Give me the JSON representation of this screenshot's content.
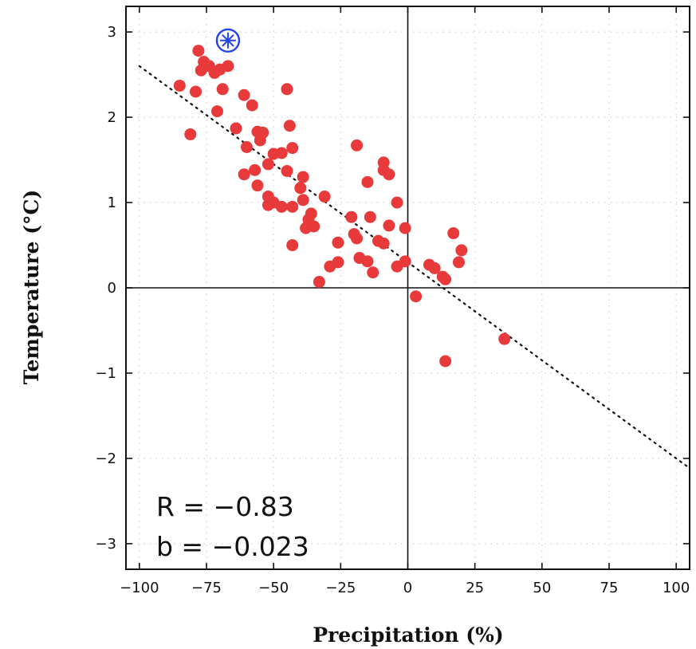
{
  "chart_data": {
    "type": "scatter",
    "xlabel": "Precipitation (%)",
    "ylabel": "Temperature (°C)",
    "xlim": [
      -105,
      105
    ],
    "ylim": [
      -3.3,
      3.3
    ],
    "grid": true,
    "grid_style": "dotted",
    "x_ticks": [
      -100,
      -75,
      -50,
      -25,
      0,
      25,
      50,
      75,
      100
    ],
    "x_tick_labels": [
      "−100",
      "−75",
      "−50",
      "−25",
      "0",
      "25",
      "50",
      "75",
      "100"
    ],
    "y_ticks": [
      3,
      2,
      1,
      0,
      -1,
      -2,
      -3
    ],
    "y_tick_labels": [
      "3",
      "2",
      "1",
      "0",
      "−1",
      "−2",
      "−3"
    ],
    "annotations": {
      "r": "R  =  −0.83",
      "b": "b  =  −0.023"
    },
    "regression": {
      "slope": -0.023,
      "intercept": 0.3,
      "style": "dotted"
    },
    "marker_color": "#e83a3a",
    "highlight_color": "#2244ee",
    "highlight_point": {
      "x": -67,
      "y": 2.9
    },
    "points": [
      {
        "x": -78,
        "y": 2.78
      },
      {
        "x": -76,
        "y": 2.65
      },
      {
        "x": -74,
        "y": 2.6
      },
      {
        "x": -77,
        "y": 2.55
      },
      {
        "x": -72,
        "y": 2.52
      },
      {
        "x": -70,
        "y": 2.56
      },
      {
        "x": -67,
        "y": 2.6
      },
      {
        "x": -85,
        "y": 2.37
      },
      {
        "x": -79,
        "y": 2.3
      },
      {
        "x": -69,
        "y": 2.33
      },
      {
        "x": -61,
        "y": 2.26
      },
      {
        "x": -58,
        "y": 2.14
      },
      {
        "x": -45,
        "y": 2.33
      },
      {
        "x": -71,
        "y": 2.07
      },
      {
        "x": -64,
        "y": 1.87
      },
      {
        "x": -44,
        "y": 1.9
      },
      {
        "x": -56,
        "y": 1.83
      },
      {
        "x": -54,
        "y": 1.82
      },
      {
        "x": -55,
        "y": 1.73
      },
      {
        "x": -81,
        "y": 1.8
      },
      {
        "x": -60,
        "y": 1.65
      },
      {
        "x": -43,
        "y": 1.64
      },
      {
        "x": -50,
        "y": 1.57
      },
      {
        "x": -47,
        "y": 1.58
      },
      {
        "x": -52,
        "y": 1.45
      },
      {
        "x": -57,
        "y": 1.38
      },
      {
        "x": -45,
        "y": 1.37
      },
      {
        "x": -61,
        "y": 1.33
      },
      {
        "x": -39,
        "y": 1.3
      },
      {
        "x": -40,
        "y": 1.17
      },
      {
        "x": -56,
        "y": 1.2
      },
      {
        "x": -52,
        "y": 1.07
      },
      {
        "x": -50,
        "y": 1.0
      },
      {
        "x": -52,
        "y": 0.97
      },
      {
        "x": -47,
        "y": 0.95
      },
      {
        "x": -43,
        "y": 0.95
      },
      {
        "x": -39,
        "y": 1.03
      },
      {
        "x": -31,
        "y": 1.07
      },
      {
        "x": -36,
        "y": 0.87
      },
      {
        "x": -37,
        "y": 0.8
      },
      {
        "x": -38,
        "y": 0.7
      },
      {
        "x": -35,
        "y": 0.72
      },
      {
        "x": -19,
        "y": 1.67
      },
      {
        "x": -9,
        "y": 1.47
      },
      {
        "x": -9,
        "y": 1.38
      },
      {
        "x": -7,
        "y": 1.33
      },
      {
        "x": -15,
        "y": 1.24
      },
      {
        "x": -4,
        "y": 1.0
      },
      {
        "x": -21,
        "y": 0.83
      },
      {
        "x": -14,
        "y": 0.83
      },
      {
        "x": -7,
        "y": 0.73
      },
      {
        "x": -1,
        "y": 0.7
      },
      {
        "x": -20,
        "y": 0.63
      },
      {
        "x": -19,
        "y": 0.58
      },
      {
        "x": -11,
        "y": 0.55
      },
      {
        "x": -9,
        "y": 0.52
      },
      {
        "x": -26,
        "y": 0.53
      },
      {
        "x": -43,
        "y": 0.5
      },
      {
        "x": -18,
        "y": 0.35
      },
      {
        "x": -15,
        "y": 0.31
      },
      {
        "x": -26,
        "y": 0.3
      },
      {
        "x": -29,
        "y": 0.25
      },
      {
        "x": -13,
        "y": 0.18
      },
      {
        "x": -4,
        "y": 0.25
      },
      {
        "x": -1,
        "y": 0.31
      },
      {
        "x": -33,
        "y": 0.07
      },
      {
        "x": 8,
        "y": 0.27
      },
      {
        "x": 10,
        "y": 0.23
      },
      {
        "x": 13,
        "y": 0.13
      },
      {
        "x": 14,
        "y": 0.1
      },
      {
        "x": 17,
        "y": 0.64
      },
      {
        "x": 20,
        "y": 0.44
      },
      {
        "x": 19,
        "y": 0.3
      },
      {
        "x": 3,
        "y": -0.1
      },
      {
        "x": 36,
        "y": -0.6
      },
      {
        "x": 14,
        "y": -0.86
      }
    ]
  }
}
